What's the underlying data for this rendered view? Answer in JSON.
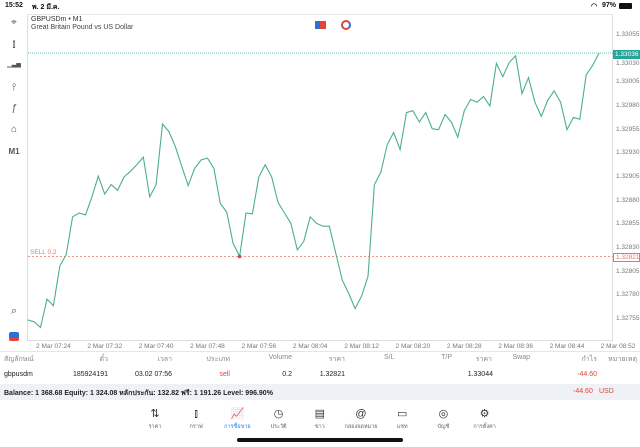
{
  "status_bar": {
    "time": "15:52",
    "date": "พ. 2 มี.ค.",
    "battery": "97%"
  },
  "left_toolbar": [
    {
      "icon": "crosshair-icon",
      "glyph": "⌖"
    },
    {
      "icon": "candlesticks-icon",
      "glyph": "⫾"
    },
    {
      "icon": "bar-chart-icon",
      "glyph": "▁▃▅"
    },
    {
      "icon": "indicators-icon",
      "glyph": "⫯"
    },
    {
      "icon": "function-icon",
      "glyph": "ƒ"
    },
    {
      "icon": "shapes-icon",
      "glyph": "⌂"
    },
    {
      "icon": "timeframe-label",
      "glyph": "M1"
    }
  ],
  "chart": {
    "symbol": "GBPUSDm • M1",
    "description": "Great Britain Pound vs US Dollar",
    "current_price": "1.33036",
    "order_label": "SELL 0.2",
    "order_price": "1.32821",
    "colors": {
      "line": "#4caf8a",
      "bid": "#26a69a",
      "order": "#e57373"
    }
  },
  "chart_data": {
    "type": "line",
    "title": "",
    "xlabel": "",
    "ylabel": "",
    "start_time": "07:20",
    "interval_minutes": 1,
    "ylim": [
      1.32735,
      1.33065
    ],
    "y_ticks": [
      "1.33055",
      "1.33030",
      "1.33005",
      "1.32980",
      "1.32955",
      "1.32930",
      "1.32905",
      "1.32880",
      "1.32855",
      "1.32830",
      "1.32805",
      "1.32780",
      "1.32755"
    ],
    "x_ticks": [
      "2 Mar 07:24",
      "2 Mar 07:32",
      "2 Mar 07:40",
      "2 Mar 07:48",
      "2 Mar 07:56",
      "2 Mar 08:04",
      "2 Mar 08:12",
      "2 Mar 08:20",
      "2 Mar 08:28",
      "2 Mar 08:36",
      "2 Mar 08:44",
      "2 Mar 08:52"
    ],
    "grid": false,
    "values": [
      1.32754,
      1.32752,
      1.32746,
      1.32776,
      1.32769,
      1.32811,
      1.32823,
      1.32863,
      1.32867,
      1.32865,
      1.32884,
      1.32906,
      1.32887,
      1.32897,
      1.32891,
      1.32905,
      1.32911,
      1.32918,
      1.32926,
      1.32884,
      1.32897,
      1.32961,
      1.32953,
      1.32937,
      1.32916,
      1.32896,
      1.32914,
      1.32923,
      1.32925,
      1.32914,
      1.32877,
      1.32868,
      1.32835,
      1.32821,
      1.32867,
      1.32866,
      1.32905,
      1.32918,
      1.32905,
      1.32878,
      1.32867,
      1.32856,
      1.32828,
      1.32837,
      1.32863,
      1.32856,
      1.32853,
      1.32853,
      1.32824,
      1.32796,
      1.32782,
      1.32766,
      1.32779,
      1.328,
      1.32897,
      1.3291,
      1.32939,
      1.32952,
      1.32934,
      1.32973,
      1.32975,
      1.32963,
      1.32973,
      1.32956,
      1.32955,
      1.32971,
      1.32963,
      1.32947,
      1.32975,
      1.32987,
      1.32984,
      1.3299,
      1.3298,
      1.33025,
      1.33011,
      1.33026,
      1.33033,
      1.32993,
      1.3301,
      1.32984,
      1.32969,
      1.32986,
      1.32996,
      1.32984,
      1.32955,
      1.32968,
      1.32966,
      1.33013,
      1.33023,
      1.33036
    ],
    "order_index": 33
  },
  "table": {
    "headers": [
      "สัญลักษณ์",
      "ตั๋ว",
      "เวลา",
      "ประเภท",
      "Volume",
      "ราคา",
      "S/L",
      "T/P",
      "ราคา",
      "Swap",
      "กำไร",
      "หมายเหตุ"
    ],
    "rows": [
      {
        "symbol": "gbpusdm",
        "ticket": "185924191",
        "time": "03.02 07:56",
        "type": "sell",
        "volume": "0.2",
        "open_price": "1.32821",
        "sl": "",
        "tp": "",
        "price": "1.33044",
        "swap": "",
        "profit": "-44.60",
        "comment": ""
      }
    ]
  },
  "summary": {
    "text": "Balance: 1 368.68 Equity: 1 324.08 หลักประกัน: 132.82 ฟรี: 1 191.26 Level: 996.90%",
    "profit": "-44.60",
    "currency": "USD"
  },
  "tabs": [
    {
      "label": "ราคา",
      "icon": "quotes-icon",
      "glyph": "⇅"
    },
    {
      "label": "กราฟ",
      "icon": "chart-icon",
      "glyph": "⫾"
    },
    {
      "label": "การซื้อขาย",
      "icon": "trade-icon",
      "glyph": "📈",
      "active": true
    },
    {
      "label": "ประวัติ",
      "icon": "history-icon",
      "glyph": "◷"
    },
    {
      "label": "ข่าว",
      "icon": "news-icon",
      "glyph": "▤"
    },
    {
      "label": "กล่องจดหมาย",
      "icon": "mailbox-icon",
      "glyph": "@"
    },
    {
      "label": "แชท",
      "icon": "chat-icon",
      "glyph": "▭"
    },
    {
      "label": "บัญชี",
      "icon": "account-icon",
      "glyph": "◎"
    },
    {
      "label": "การตั้งค่า",
      "icon": "settings-icon",
      "glyph": "⚙"
    }
  ]
}
